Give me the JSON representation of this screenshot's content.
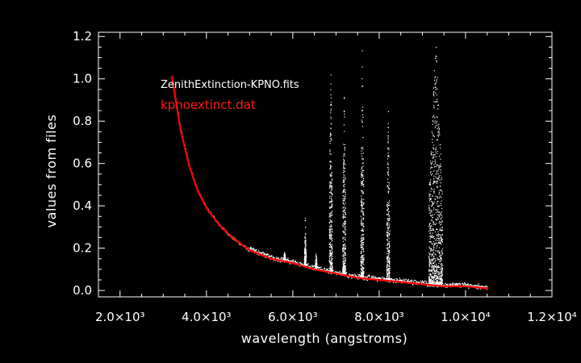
{
  "chart_data": {
    "type": "scatter",
    "xlabel": "wavelength (angstroms)",
    "ylabel": "values from files",
    "xlim": [
      1500,
      12000
    ],
    "ylim": [
      -0.03,
      1.22
    ],
    "x_ticks": [
      2000,
      4000,
      6000,
      8000,
      10000,
      12000
    ],
    "x_tick_labels": [
      "2.0×10³",
      "4.0×10³",
      "6.0×10³",
      "8.0×10³",
      "1.0×10⁴",
      "1.2×10⁴"
    ],
    "y_ticks": [
      0.0,
      0.2,
      0.4,
      0.6,
      0.8,
      1.0,
      1.2
    ],
    "y_tick_labels": [
      "0.0",
      "0.2",
      "0.4",
      "0.6",
      "0.8",
      "1.0",
      "1.2"
    ],
    "grid": false,
    "legend_placement": "top-left",
    "series": [
      {
        "name": "ZenithExtinction-KPNO.fits",
        "style": "points",
        "color": "#ffffff",
        "x": [
          3200,
          3400,
          3600,
          3800,
          4000,
          4300,
          4600,
          5000,
          5500,
          6000,
          6500,
          7000,
          7500,
          8000,
          8500,
          9000,
          9500,
          10000,
          10500
        ],
        "y": [
          1.01,
          0.76,
          0.59,
          0.47,
          0.39,
          0.31,
          0.25,
          0.19,
          0.15,
          0.13,
          0.1,
          0.08,
          0.06,
          0.05,
          0.04,
          0.03,
          0.02,
          0.02,
          0.01
        ],
        "absorption_spikes": [
          {
            "x": 5800,
            "ymax": 0.19
          },
          {
            "x": 6280,
            "ymax": 0.35
          },
          {
            "x": 6530,
            "ymax": 0.18
          },
          {
            "x": 6870,
            "ymax": 1.05
          },
          {
            "x": 7180,
            "ymax": 0.95
          },
          {
            "x": 7600,
            "ymax": 1.15
          },
          {
            "x": 8200,
            "ymax": 0.9
          },
          {
            "x": 9300,
            "ymax": 1.2
          }
        ]
      },
      {
        "name": "kpnoextinct.dat",
        "style": "line",
        "color": "#ff0000",
        "x": [
          3200,
          3400,
          3600,
          3800,
          4000,
          4300,
          4600,
          5000,
          5500,
          6000,
          6500,
          7000,
          7500,
          8000,
          8500,
          9000,
          9500,
          10000,
          10500
        ],
        "y": [
          1.01,
          0.76,
          0.59,
          0.47,
          0.39,
          0.31,
          0.25,
          0.19,
          0.15,
          0.13,
          0.1,
          0.08,
          0.06,
          0.05,
          0.04,
          0.03,
          0.02,
          0.02,
          0.01
        ]
      }
    ]
  }
}
